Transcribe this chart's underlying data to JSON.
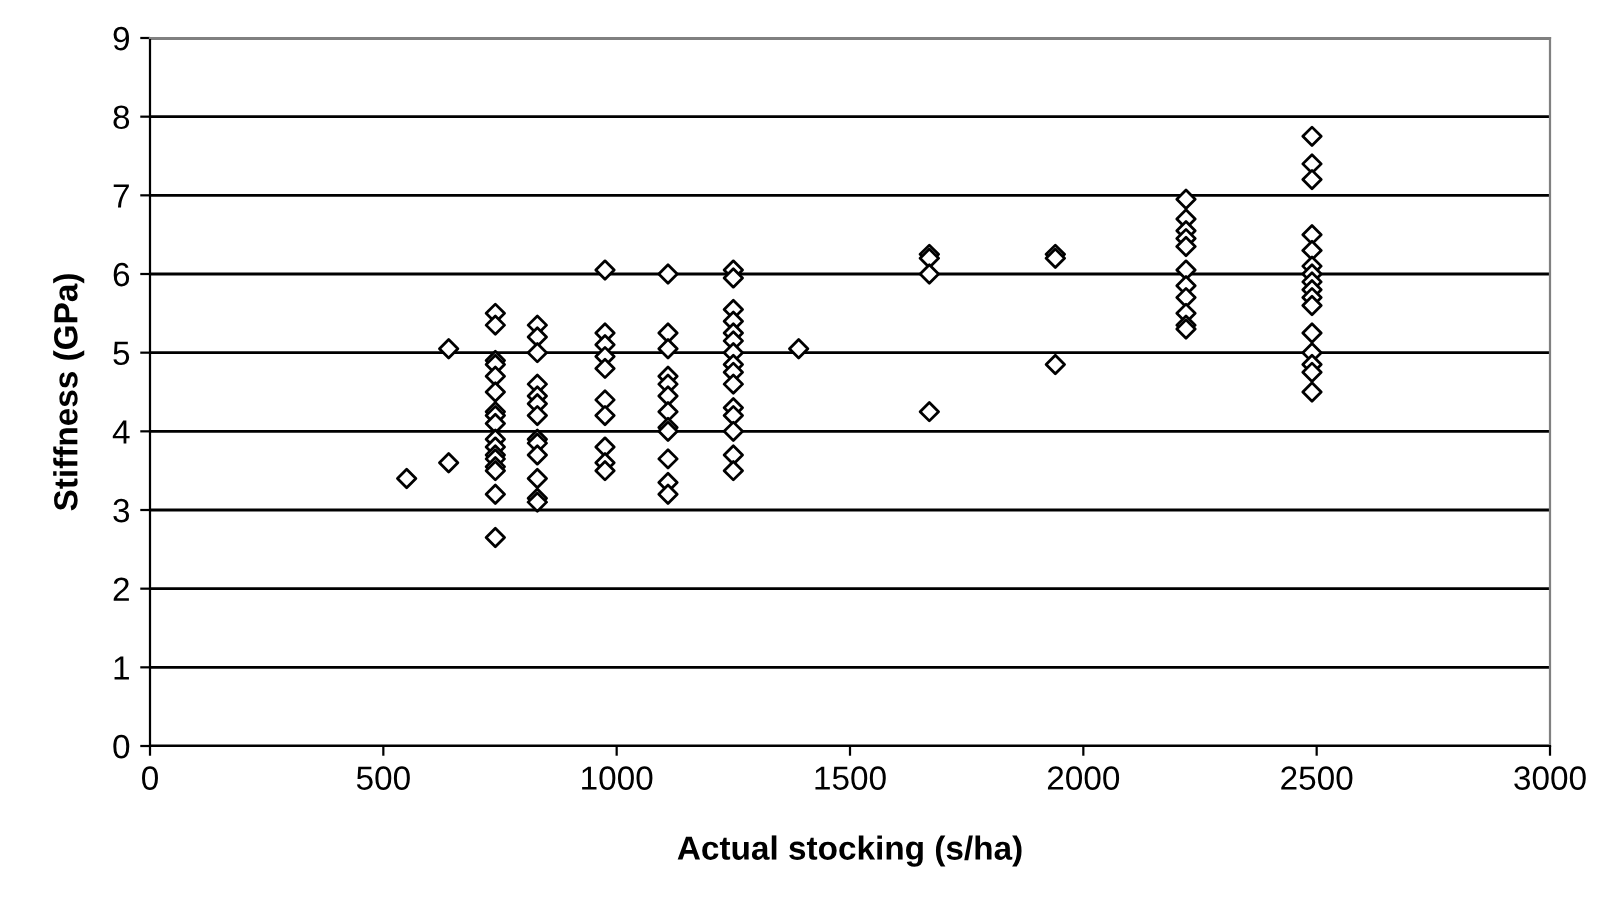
{
  "chart_data": {
    "type": "scatter",
    "xlabel": "Actual stocking (s/ha)",
    "ylabel": "Stiffness (GPa)",
    "x": [
      550,
      640,
      640,
      740,
      740,
      740,
      740,
      740,
      740,
      740,
      740,
      740,
      740,
      740,
      740,
      740,
      740,
      740,
      740,
      740,
      830,
      830,
      830,
      830,
      830,
      830,
      830,
      830,
      830,
      830,
      830,
      830,
      830,
      975,
      975,
      975,
      975,
      975,
      975,
      975,
      975,
      975,
      975,
      1110,
      1110,
      1110,
      1110,
      1110,
      1110,
      1110,
      1110,
      1110,
      1110,
      1110,
      1110,
      1250,
      1250,
      1250,
      1250,
      1250,
      1250,
      1250,
      1250,
      1250,
      1250,
      1250,
      1250,
      1250,
      1250,
      1250,
      1390,
      1670,
      1670,
      1670,
      1670,
      1940,
      1940,
      1940,
      2220,
      2220,
      2220,
      2220,
      2220,
      2220,
      2220,
      2220,
      2220,
      2220,
      2220,
      2490,
      2490,
      2490,
      2490,
      2490,
      2490,
      2490,
      2490,
      2490,
      2490,
      2490,
      2490,
      2490,
      2490,
      2490,
      2490
    ],
    "values": [
      3.4,
      3.6,
      5.05,
      5.5,
      5.35,
      4.9,
      4.85,
      4.7,
      4.5,
      4.25,
      4.2,
      4.1,
      3.9,
      3.8,
      3.7,
      3.65,
      3.55,
      3.5,
      3.2,
      2.65,
      5.35,
      5.2,
      5.0,
      4.6,
      4.45,
      4.35,
      4.2,
      3.9,
      3.85,
      3.7,
      3.4,
      3.15,
      3.1,
      6.05,
      5.25,
      5.1,
      4.95,
      4.8,
      4.4,
      4.2,
      3.8,
      3.6,
      3.5,
      6.0,
      5.25,
      5.05,
      4.7,
      4.6,
      4.45,
      4.25,
      4.05,
      4.0,
      3.65,
      3.35,
      3.2,
      6.05,
      5.95,
      5.55,
      5.4,
      5.25,
      5.15,
      5.0,
      4.85,
      4.75,
      4.6,
      4.3,
      4.2,
      4.0,
      3.7,
      3.5,
      5.05,
      6.25,
      6.2,
      6.0,
      4.25,
      6.25,
      6.2,
      4.85,
      6.95,
      6.7,
      6.55,
      6.45,
      6.35,
      6.05,
      5.85,
      5.7,
      5.5,
      5.35,
      5.3,
      7.75,
      7.4,
      7.2,
      6.5,
      6.3,
      6.1,
      6.0,
      5.9,
      5.8,
      5.7,
      5.6,
      5.25,
      5.0,
      4.85,
      4.75,
      4.5
    ],
    "color": "#000000",
    "marker": "diamond",
    "xlim": [
      0,
      3000
    ],
    "xticks": [
      0,
      500,
      1000,
      1500,
      2000,
      2500,
      3000
    ],
    "ylim": [
      0,
      9
    ],
    "yticks": [
      0,
      1,
      2,
      3,
      4,
      5,
      6,
      7,
      8,
      9
    ],
    "grid": "y"
  }
}
